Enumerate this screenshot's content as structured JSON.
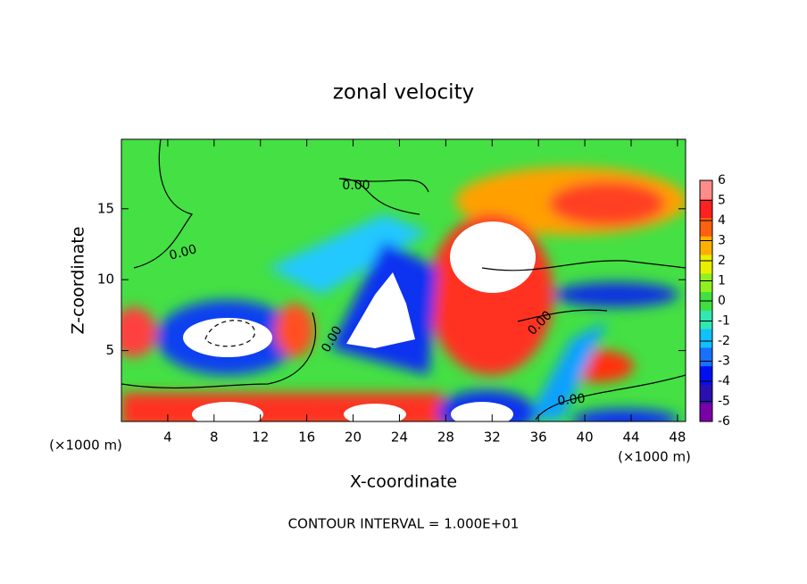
{
  "chart_data": {
    "type": "contour",
    "title": "zonal velocity",
    "x_label": "X-coordinate",
    "y_label": "Z-coordinate",
    "x_unit_label": "(×1000 m)",
    "y_unit_label": "(×1000 m)",
    "footer": "CONTOUR INTERVAL = 1.000E+01",
    "xlim": [
      0,
      48.7
    ],
    "xticks": [
      4,
      8,
      12,
      16,
      20,
      24,
      28,
      32,
      36,
      40,
      44,
      48
    ],
    "ylim": [
      0,
      19.9
    ],
    "yticks": [
      5,
      10,
      15
    ],
    "colorbar_lim": [
      -6,
      6
    ],
    "colorbar_ticks": [
      -6,
      -5,
      -4,
      -3,
      -2,
      -1,
      0,
      1,
      2,
      3,
      4,
      5,
      6
    ],
    "colorbar_colors": [
      "#7a00a8",
      "#2a10b0",
      "#0010f0",
      "#1870ff",
      "#10c0ff",
      "#30e8b0",
      "#40e040",
      "#90f020",
      "#e8f000",
      "#ffb000",
      "#ff6010",
      "#ff2020",
      "#ff8c8c"
    ],
    "contour_labels": [
      "0.00",
      "0.00",
      "0.00",
      "0.00",
      "0.00"
    ]
  }
}
